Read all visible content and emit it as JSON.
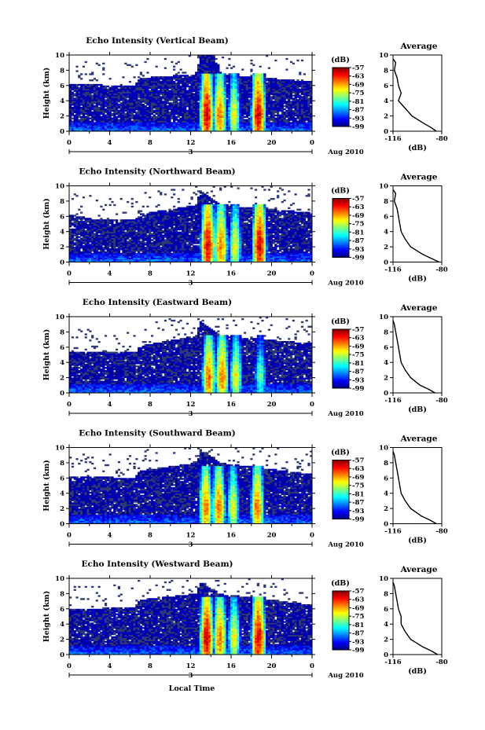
{
  "page": {
    "x_axis_label": "Local Time",
    "date_label": "Aug 2010",
    "day_label": "3"
  },
  "colorbar": {
    "unit": "(dB)",
    "ticks": [
      "-57",
      "-63",
      "-69",
      "-75",
      "-81",
      "-87",
      "-93",
      "-99"
    ]
  },
  "panels": [
    {
      "title": "Echo Intensity (Vertical Beam)"
    },
    {
      "title": "Echo Intensity (Northward Beam)"
    },
    {
      "title": "Echo Intensity (Eastward Beam)"
    },
    {
      "title": "Echo Intensity (Southward Beam)"
    },
    {
      "title": "Echo Intensity (Westward Beam)"
    }
  ],
  "chart_data": [
    {
      "type": "heatmap",
      "title": "Echo Intensity (Vertical Beam)",
      "ylabel": "Height (km)",
      "xlabel": "",
      "xlim": [
        0,
        24
      ],
      "ylim": [
        0,
        10
      ],
      "xticks": [
        "0",
        "4",
        "8",
        "12",
        "16",
        "20",
        "0"
      ],
      "yticks": [
        "0",
        "2",
        "4",
        "6",
        "8",
        "10"
      ],
      "colorbar": {
        "label": "(dB)",
        "range": [
          -99,
          -57
        ],
        "ticks": [
          -57,
          -63,
          -69,
          -75,
          -81,
          -87,
          -93,
          -99
        ],
        "colormap": "jet"
      },
      "cloud_top_km": [
        {
          "t": 0,
          "h": 6.2
        },
        {
          "t": 6.5,
          "h": 6.0
        },
        {
          "t": 7,
          "h": 7.0
        },
        {
          "t": 12.5,
          "h": 7.5
        },
        {
          "t": 13,
          "h": 10
        },
        {
          "t": 14.5,
          "h": 10
        },
        {
          "t": 15,
          "h": 7.5
        },
        {
          "t": 24,
          "h": 6.5
        }
      ],
      "convective_cells": [
        {
          "t": 13.6,
          "peak_dB": -57
        },
        {
          "t": 14.9,
          "peak_dB": -63
        },
        {
          "t": 16.3,
          "peak_dB": -69
        },
        {
          "t": 18.7,
          "peak_dB": -57
        }
      ],
      "average_profile": {
        "title": "Average",
        "xlabel": "(dB)",
        "ylabel": "",
        "xlim": [
          -116,
          -80
        ],
        "xticks": [
          "-116",
          "-80"
        ],
        "yticks": [
          "0",
          "2",
          "4",
          "6",
          "8",
          "10"
        ],
        "height_km": [
          0,
          0.5,
          1,
          2,
          3,
          4,
          5,
          6,
          7,
          8,
          9,
          9.5
        ],
        "value_dB": [
          -84,
          -88,
          -93,
          -102,
          -107,
          -112,
          -110,
          -112,
          -113,
          -115,
          -114,
          -116
        ]
      }
    },
    {
      "type": "heatmap",
      "title": "Echo Intensity (Northward Beam)",
      "ylabel": "Height (km)",
      "xlabel": "",
      "xlim": [
        0,
        24
      ],
      "ylim": [
        0,
        10
      ],
      "xticks": [
        "0",
        "4",
        "8",
        "12",
        "16",
        "20",
        "0"
      ],
      "yticks": [
        "0",
        "2",
        "4",
        "6",
        "8",
        "10"
      ],
      "colorbar": {
        "label": "(dB)",
        "range": [
          -99,
          -57
        ],
        "ticks": [
          -57,
          -63,
          -69,
          -75,
          -81,
          -87,
          -93,
          -99
        ],
        "colormap": "jet"
      },
      "cloud_top_km": [
        {
          "t": 0,
          "h": 6.3
        },
        {
          "t": 3,
          "h": 5.5
        },
        {
          "t": 6.5,
          "h": 5.5
        },
        {
          "t": 7,
          "h": 6.3
        },
        {
          "t": 12.5,
          "h": 7.5
        },
        {
          "t": 13,
          "h": 9.5
        },
        {
          "t": 15,
          "h": 7.5
        },
        {
          "t": 24,
          "h": 6.5
        }
      ],
      "convective_cells": [
        {
          "t": 13.7,
          "peak_dB": -57
        },
        {
          "t": 15.0,
          "peak_dB": -63
        },
        {
          "t": 16.4,
          "peak_dB": -69
        },
        {
          "t": 18.8,
          "peak_dB": -57
        }
      ],
      "average_profile": {
        "title": "Average",
        "xlabel": "(dB)",
        "ylabel": "",
        "xlim": [
          -116,
          -80
        ],
        "xticks": [
          "-116",
          "-80"
        ],
        "yticks": [
          "0",
          "2",
          "4",
          "6",
          "8",
          "10"
        ],
        "height_km": [
          0,
          0.5,
          1,
          2,
          3,
          4,
          5,
          6,
          7,
          8,
          9,
          9.5
        ],
        "value_dB": [
          -82,
          -88,
          -94,
          -103,
          -107,
          -110,
          -111,
          -112,
          -113,
          -115,
          -114,
          -116
        ]
      }
    },
    {
      "type": "heatmap",
      "title": "Echo Intensity (Eastward Beam)",
      "ylabel": "Height (km)",
      "xlabel": "",
      "xlim": [
        0,
        24
      ],
      "ylim": [
        0,
        10
      ],
      "xticks": [
        "0",
        "4",
        "8",
        "12",
        "16",
        "20",
        "0"
      ],
      "yticks": [
        "0",
        "2",
        "4",
        "6",
        "8",
        "10"
      ],
      "colorbar": {
        "label": "(dB)",
        "range": [
          -99,
          -57
        ],
        "ticks": [
          -57,
          -63,
          -69,
          -75,
          -81,
          -87,
          -93,
          -99
        ],
        "colormap": "jet"
      },
      "cloud_top_km": [
        {
          "t": 0,
          "h": 5.5
        },
        {
          "t": 6.5,
          "h": 5.3
        },
        {
          "t": 7,
          "h": 6.2
        },
        {
          "t": 12.5,
          "h": 7.5
        },
        {
          "t": 13,
          "h": 9.5
        },
        {
          "t": 15,
          "h": 7.5
        },
        {
          "t": 24,
          "h": 6.5
        }
      ],
      "convective_cells": [
        {
          "t": 13.8,
          "peak_dB": -63
        },
        {
          "t": 15.1,
          "peak_dB": -63
        },
        {
          "t": 16.5,
          "peak_dB": -69
        },
        {
          "t": 18.9,
          "peak_dB": -75
        }
      ],
      "average_profile": {
        "title": "Average",
        "xlabel": "(dB)",
        "ylabel": "",
        "xlim": [
          -116,
          -80
        ],
        "xticks": [
          "-116",
          "-80"
        ],
        "yticks": [
          "0",
          "2",
          "4",
          "6",
          "8",
          "10"
        ],
        "height_km": [
          0,
          0.5,
          1,
          2,
          3,
          4,
          5,
          6,
          7,
          8,
          9,
          9.5
        ],
        "value_dB": [
          -85,
          -90,
          -96,
          -103,
          -107,
          -110,
          -111,
          -112,
          -113,
          -114,
          -115,
          -116
        ]
      }
    },
    {
      "type": "heatmap",
      "title": "Echo Intensity (Southward Beam)",
      "ylabel": "Height (km)",
      "xlabel": "",
      "xlim": [
        0,
        24
      ],
      "ylim": [
        0,
        10
      ],
      "xticks": [
        "0",
        "4",
        "8",
        "12",
        "16",
        "20",
        "0"
      ],
      "yticks": [
        "0",
        "2",
        "4",
        "6",
        "8",
        "10"
      ],
      "colorbar": {
        "label": "(dB)",
        "range": [
          -99,
          -57
        ],
        "ticks": [
          -57,
          -63,
          -69,
          -75,
          -81,
          -87,
          -93,
          -99
        ],
        "colormap": "jet"
      },
      "cloud_top_km": [
        {
          "t": 0,
          "h": 6.3
        },
        {
          "t": 6.5,
          "h": 6.0
        },
        {
          "t": 7,
          "h": 7.0
        },
        {
          "t": 12.5,
          "h": 8.0
        },
        {
          "t": 13,
          "h": 9.8
        },
        {
          "t": 15,
          "h": 8.0
        },
        {
          "t": 24,
          "h": 6.5
        }
      ],
      "convective_cells": [
        {
          "t": 13.5,
          "peak_dB": -63
        },
        {
          "t": 14.8,
          "peak_dB": -63
        },
        {
          "t": 16.2,
          "peak_dB": -69
        },
        {
          "t": 18.6,
          "peak_dB": -63
        }
      ],
      "average_profile": {
        "title": "Average",
        "xlabel": "(dB)",
        "ylabel": "",
        "xlim": [
          -116,
          -80
        ],
        "xticks": [
          "-116",
          "-80"
        ],
        "yticks": [
          "0",
          "2",
          "4",
          "6",
          "8",
          "10"
        ],
        "height_km": [
          0,
          0.5,
          1,
          2,
          3,
          4,
          5,
          6,
          7,
          8,
          9,
          9.5
        ],
        "value_dB": [
          -84,
          -89,
          -95,
          -103,
          -107,
          -110,
          -111,
          -112,
          -113,
          -114,
          -115,
          -116
        ]
      }
    },
    {
      "type": "heatmap",
      "title": "Echo Intensity (Westward Beam)",
      "ylabel": "Height (km)",
      "xlabel": "Local Time",
      "xlim": [
        0,
        24
      ],
      "ylim": [
        0,
        10
      ],
      "xticks": [
        "0",
        "4",
        "8",
        "12",
        "16",
        "20",
        "0"
      ],
      "yticks": [
        "0",
        "2",
        "4",
        "6",
        "8",
        "10"
      ],
      "colorbar": {
        "label": "(dB)",
        "range": [
          -99,
          -57
        ],
        "ticks": [
          -57,
          -63,
          -69,
          -75,
          -81,
          -87,
          -93,
          -99
        ],
        "colormap": "jet"
      },
      "cloud_top_km": [
        {
          "t": 0,
          "h": 6.0
        },
        {
          "t": 6.5,
          "h": 6.2
        },
        {
          "t": 7,
          "h": 7.2
        },
        {
          "t": 12.5,
          "h": 8.0
        },
        {
          "t": 13,
          "h": 9.5
        },
        {
          "t": 15,
          "h": 8.0
        },
        {
          "t": 24,
          "h": 6.5
        }
      ],
      "convective_cells": [
        {
          "t": 13.6,
          "peak_dB": -57
        },
        {
          "t": 14.9,
          "peak_dB": -63
        },
        {
          "t": 16.3,
          "peak_dB": -69
        },
        {
          "t": 18.7,
          "peak_dB": -57
        }
      ],
      "average_profile": {
        "title": "Average",
        "xlabel": "(dB)",
        "ylabel": "",
        "xlim": [
          -116,
          -80
        ],
        "xticks": [
          "-116",
          "-80"
        ],
        "yticks": [
          "0",
          "2",
          "4",
          "6",
          "8",
          "10"
        ],
        "height_km": [
          0,
          0.5,
          1,
          2,
          3,
          4,
          5,
          6,
          7,
          8,
          9,
          9.5
        ],
        "value_dB": [
          -83,
          -88,
          -94,
          -103,
          -107,
          -110,
          -110,
          -112,
          -113,
          -114,
          -115,
          -116
        ]
      }
    }
  ]
}
